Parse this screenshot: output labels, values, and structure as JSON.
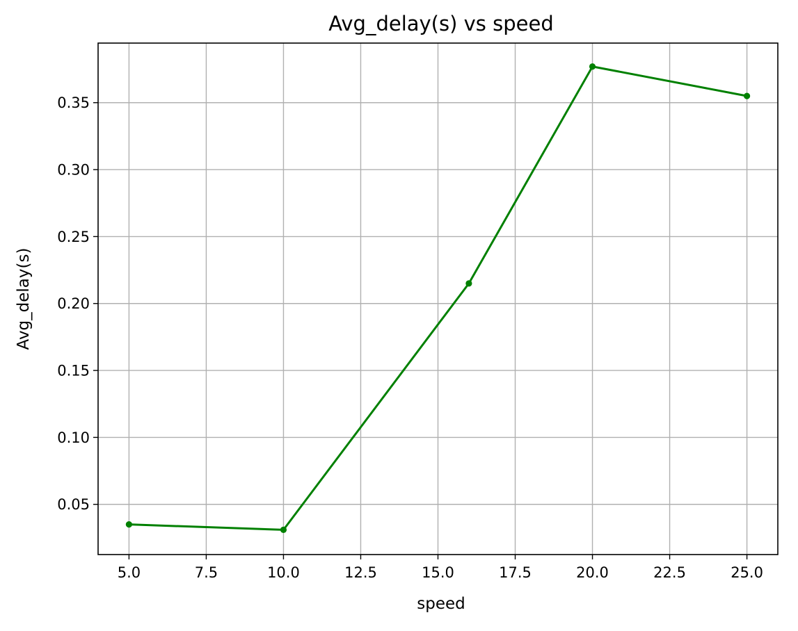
{
  "chart_data": {
    "type": "line",
    "title": "Avg_delay(s) vs speed",
    "xlabel": "speed",
    "ylabel": "Avg_delay(s)",
    "xlim": [
      4.0,
      26.0
    ],
    "ylim": [
      0.0125,
      0.3945
    ],
    "xticks": [
      5.0,
      7.5,
      10.0,
      12.5,
      15.0,
      17.5,
      20.0,
      22.5,
      25.0
    ],
    "xtick_labels": [
      "5.0",
      "7.5",
      "10.0",
      "12.5",
      "15.0",
      "17.5",
      "20.0",
      "22.5",
      "25.0"
    ],
    "yticks": [
      0.05,
      0.1,
      0.15,
      0.2,
      0.25,
      0.3,
      0.35
    ],
    "ytick_labels": [
      "0.05",
      "0.10",
      "0.15",
      "0.20",
      "0.25",
      "0.30",
      "0.35"
    ],
    "grid": true,
    "legend": "none",
    "series": [
      {
        "color": "#008000",
        "marker": "circle",
        "x": [
          5,
          10,
          16,
          20,
          25
        ],
        "y": [
          0.035,
          0.031,
          0.215,
          0.377,
          0.355
        ]
      }
    ]
  }
}
